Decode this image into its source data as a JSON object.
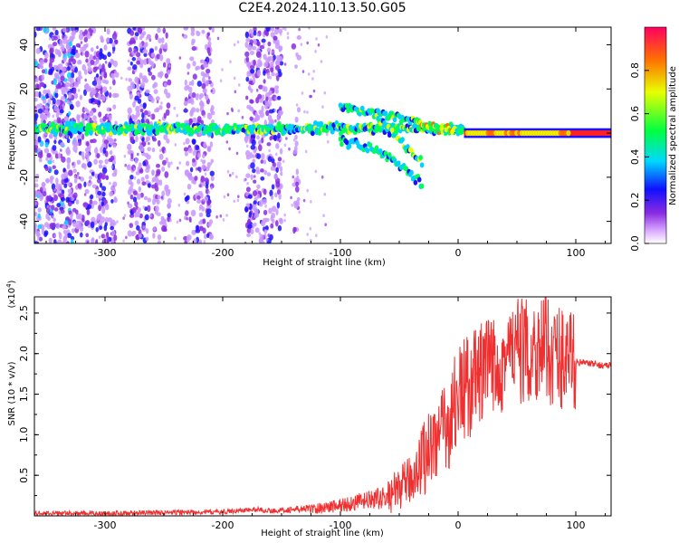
{
  "title": "C2E4.2024.110.13.50.G05",
  "chart_data": [
    {
      "type": "heatmap",
      "xlabel": "Height of straight line (km)",
      "ylabel": "Frequency (Hz)",
      "xlim": [
        -360,
        130
      ],
      "ylim": [
        -50,
        48
      ],
      "xticks": [
        -300,
        -200,
        -100,
        0,
        100
      ],
      "yticks": [
        -40,
        -20,
        0,
        20,
        40
      ],
      "colorbar": {
        "label": "Normalized spectral amplitude",
        "range": [
          0.0,
          1.0
        ],
        "ticks": [
          0.0,
          0.2,
          0.4,
          0.6,
          0.8
        ]
      },
      "features": [
        {
          "name": "main line",
          "x": [
            -360,
            5
          ],
          "y": 2,
          "amplitude": 0.45
        },
        {
          "name": "carrier",
          "x": [
            5,
            130
          ],
          "y": 0,
          "amplitude": 0.95
        },
        {
          "name": "upper branch",
          "x": [
            -100,
            -30
          ],
          "y": [
            12,
            5
          ]
        },
        {
          "name": "lower branch",
          "x": [
            -100,
            -20
          ],
          "y": [
            -8,
            -30
          ]
        }
      ]
    },
    {
      "type": "line",
      "xlabel": "Height of straight line (km)",
      "ylabel": "SNR (10 * v/v)",
      "yscale_label": "(x10",
      "yscale_exp": "4",
      "xlim": [
        -360,
        130
      ],
      "ylim": [
        0,
        2.7
      ],
      "xticks": [
        -300,
        -200,
        -100,
        0,
        100
      ],
      "yticks": [
        0.5,
        1.0,
        1.5,
        2.0,
        2.5
      ],
      "color": "#f03030",
      "x": [
        -360,
        -300,
        -250,
        -200,
        -170,
        -160,
        -150,
        -120,
        -100,
        -80,
        -60,
        -40,
        -30,
        -20,
        -10,
        0,
        10,
        20,
        30,
        40,
        50,
        60,
        70,
        80,
        90,
        100,
        110,
        120,
        130
      ],
      "y": [
        0.03,
        0.03,
        0.04,
        0.05,
        0.08,
        0.06,
        0.07,
        0.09,
        0.13,
        0.18,
        0.23,
        0.45,
        0.7,
        0.95,
        1.05,
        1.5,
        1.6,
        1.75,
        1.85,
        1.95,
        2.05,
        2.0,
        2.1,
        2.0,
        1.95,
        1.9,
        1.88,
        1.86,
        1.85
      ]
    }
  ]
}
